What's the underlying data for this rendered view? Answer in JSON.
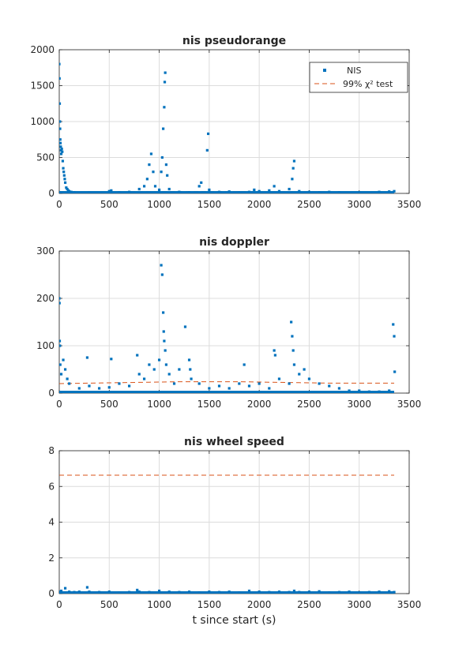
{
  "colors": {
    "nis": "#0072BD",
    "threshold": "#D95319",
    "grid": "#dcdcdc",
    "axis": "#262626"
  },
  "chart_data": [
    {
      "type": "scatter",
      "title": "nis pseudorange",
      "xlabel": "",
      "ylabel": "",
      "xlim": [
        0,
        3500
      ],
      "ylim": [
        0,
        2000
      ],
      "xticks": [
        "0",
        "500",
        "1000",
        "1500",
        "2000",
        "2500",
        "3000",
        "3500"
      ],
      "yticks": [
        "0",
        "500",
        "1000",
        "1500",
        "2000"
      ],
      "grid": true,
      "legend": {
        "placement": "top-right",
        "entries": [
          "NIS",
          "99% χ² test"
        ]
      },
      "series": [
        {
          "name": "NIS",
          "style": "points",
          "x": [
            0,
            2,
            4,
            6,
            8,
            10,
            12,
            15,
            18,
            20,
            25,
            30,
            35,
            40,
            45,
            50,
            55,
            60,
            70,
            80,
            90,
            100,
            120,
            150,
            200,
            300,
            400,
            500,
            520,
            600,
            700,
            800,
            850,
            880,
            900,
            920,
            940,
            960,
            1000,
            1020,
            1030,
            1040,
            1050,
            1055,
            1060,
            1070,
            1080,
            1100,
            1200,
            1300,
            1400,
            1420,
            1480,
            1490,
            1500,
            1600,
            1700,
            1800,
            1900,
            1950,
            2000,
            2100,
            2150,
            2200,
            2300,
            2330,
            2340,
            2350,
            2400,
            2500,
            2600,
            2700,
            2800,
            2900,
            3000,
            3100,
            3200,
            3300,
            3350
          ],
          "y": [
            1800,
            1600,
            1250,
            1000,
            900,
            750,
            700,
            650,
            600,
            550,
            620,
            580,
            450,
            350,
            300,
            250,
            200,
            150,
            80,
            60,
            40,
            30,
            20,
            15,
            10,
            12,
            10,
            30,
            40,
            15,
            20,
            60,
            100,
            200,
            400,
            550,
            300,
            100,
            50,
            300,
            500,
            900,
            1200,
            1550,
            1680,
            400,
            250,
            60,
            20,
            15,
            100,
            150,
            600,
            830,
            50,
            20,
            25,
            15,
            20,
            50,
            30,
            40,
            100,
            30,
            60,
            200,
            350,
            450,
            30,
            20,
            15,
            20,
            15,
            10,
            15,
            10,
            20,
            25,
            30
          ]
        }
      ],
      "threshold": {
        "name": "99% χ² test",
        "style": "dashed",
        "x": [
          0,
          500,
          1000,
          1500,
          2000,
          2500,
          3000,
          3350
        ],
        "y": [
          22,
          22,
          24,
          25,
          24,
          23,
          22,
          22
        ]
      }
    },
    {
      "type": "scatter",
      "title": "nis doppler",
      "xlabel": "",
      "ylabel": "",
      "xlim": [
        0,
        3500
      ],
      "ylim": [
        0,
        300
      ],
      "xticks": [
        "0",
        "500",
        "1000",
        "1500",
        "2000",
        "2500",
        "3000",
        "3500"
      ],
      "yticks": [
        "0",
        "100",
        "200",
        "300"
      ],
      "grid": true,
      "series": [
        {
          "name": "",
          "style": "points",
          "x": [
            0,
            2,
            4,
            6,
            10,
            20,
            40,
            60,
            80,
            100,
            200,
            280,
            300,
            400,
            500,
            520,
            600,
            700,
            780,
            800,
            850,
            900,
            950,
            1000,
            1020,
            1030,
            1040,
            1045,
            1050,
            1060,
            1070,
            1100,
            1150,
            1200,
            1260,
            1300,
            1310,
            1320,
            1400,
            1500,
            1600,
            1700,
            1800,
            1850,
            1900,
            2000,
            2100,
            2150,
            2160,
            2200,
            2300,
            2320,
            2330,
            2340,
            2350,
            2400,
            2450,
            2500,
            2600,
            2700,
            2800,
            2900,
            3000,
            3100,
            3200,
            3300,
            3340,
            3350,
            3355
          ],
          "y": [
            200,
            190,
            110,
            100,
            60,
            40,
            70,
            50,
            30,
            20,
            10,
            75,
            15,
            10,
            12,
            72,
            20,
            15,
            80,
            40,
            30,
            60,
            50,
            70,
            270,
            250,
            170,
            130,
            110,
            90,
            60,
            40,
            20,
            50,
            140,
            70,
            50,
            30,
            20,
            10,
            15,
            10,
            20,
            60,
            15,
            20,
            10,
            90,
            80,
            30,
            20,
            150,
            120,
            90,
            60,
            40,
            50,
            30,
            20,
            15,
            10,
            5,
            5,
            3,
            3,
            5,
            145,
            120,
            45
          ]
        }
      ],
      "threshold": {
        "name": "99% χ² test",
        "style": "dashed",
        "x": [
          0,
          300,
          600,
          900,
          1200,
          1500,
          1800,
          2100,
          2400,
          2700,
          3000,
          3350
        ],
        "y": [
          20,
          21,
          22,
          23,
          24,
          24,
          24,
          23,
          22,
          21,
          21,
          21
        ]
      }
    },
    {
      "type": "scatter",
      "title": "nis wheel speed",
      "xlabel": "t since start (s)",
      "ylabel": "",
      "xlim": [
        0,
        3500
      ],
      "ylim": [
        0,
        8
      ],
      "xticks": [
        "0",
        "500",
        "1000",
        "1500",
        "2000",
        "2500",
        "3000",
        "3500"
      ],
      "yticks": [
        "0",
        "2",
        "4",
        "6",
        "8"
      ],
      "grid": true,
      "series": [
        {
          "name": "",
          "style": "points",
          "x": [
            0,
            20,
            60,
            100,
            150,
            200,
            280,
            300,
            400,
            500,
            600,
            700,
            780,
            800,
            900,
            1000,
            1100,
            1200,
            1300,
            1400,
            1500,
            1600,
            1700,
            1800,
            1900,
            2000,
            2100,
            2200,
            2300,
            2350,
            2400,
            2500,
            2600,
            2700,
            2800,
            2900,
            3000,
            3100,
            3200,
            3300,
            3350
          ],
          "y": [
            0.1,
            0.15,
            0.3,
            0.1,
            0.08,
            0.1,
            0.35,
            0.1,
            0.08,
            0.1,
            0.05,
            0.08,
            0.2,
            0.1,
            0.08,
            0.15,
            0.1,
            0.08,
            0.1,
            0.06,
            0.1,
            0.08,
            0.1,
            0.06,
            0.15,
            0.1,
            0.08,
            0.1,
            0.08,
            0.15,
            0.08,
            0.1,
            0.12,
            0.06,
            0.08,
            0.1,
            0.06,
            0.08,
            0.1,
            0.12,
            0.08
          ]
        }
      ],
      "threshold": {
        "name": "99% χ² test",
        "style": "dashed",
        "x": [
          0,
          3350
        ],
        "y": [
          6.63,
          6.63
        ]
      }
    }
  ]
}
